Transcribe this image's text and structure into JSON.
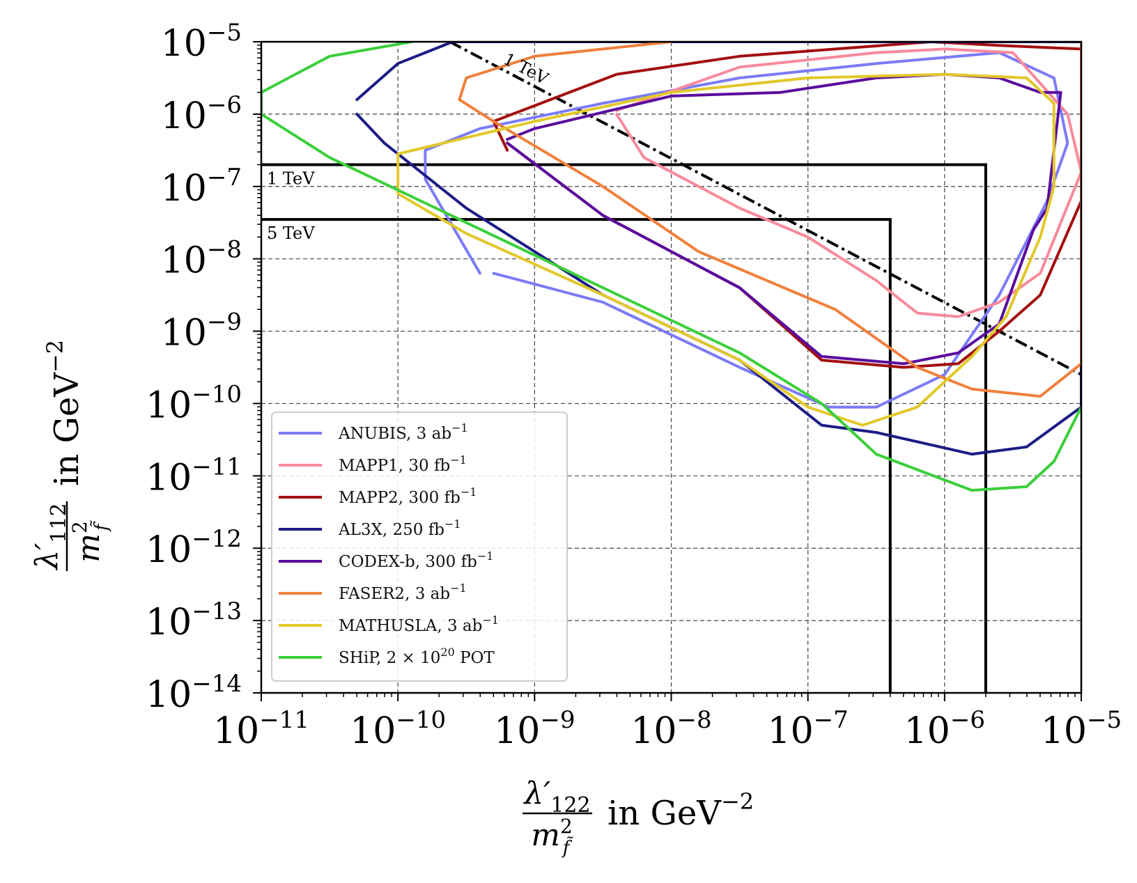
{
  "chart_data": {
    "type": "line",
    "scale": {
      "x": "log",
      "y": "log"
    },
    "xlim": [
      -11,
      -5
    ],
    "ylim": [
      -14,
      -5
    ],
    "x_tick_exponents": [
      -11,
      -10,
      -9,
      -8,
      -7,
      -6,
      -5
    ],
    "y_tick_exponents": [
      -14,
      -13,
      -12,
      -11,
      -10,
      -9,
      -8,
      -7,
      -6,
      -5
    ],
    "tick_base": "10",
    "xlabel": {
      "numerator": "λ′",
      "numerator_sub": "122",
      "denominator": "m",
      "denominator_sup": "2",
      "denominator_sub": "f̃",
      "unit": "in GeV",
      "unit_sup": "−2"
    },
    "ylabel": {
      "numerator": "λ′",
      "numerator_sub": "112",
      "denominator": "m",
      "denominator_sup": "2",
      "denominator_sub": "f̃",
      "unit": "in GeV",
      "unit_sup": "−2"
    },
    "grid": true,
    "legend_position": "lower-left",
    "series": [
      {
        "name": "ANUBIS,",
        "lumi": "3 ab",
        "lumi_sup": "−1",
        "color": "#7b7bf7",
        "points": [
          [
            -9.3,
            -8.2
          ],
          [
            -8.5,
            -8.6
          ],
          [
            -7.5,
            -9.5
          ],
          [
            -6.85,
            -10.05
          ],
          [
            -6.5,
            -10.05
          ],
          [
            -6.0,
            -9.6
          ],
          [
            -5.6,
            -8.5
          ],
          [
            -5.25,
            -7.2
          ],
          [
            -5.1,
            -6.4
          ],
          [
            -5.2,
            -5.5
          ],
          [
            -5.6,
            -5.15
          ],
          [
            -6.5,
            -5.3
          ],
          [
            -7.5,
            -5.5
          ],
          [
            -8.5,
            -5.85
          ],
          [
            -9.4,
            -6.2
          ],
          [
            -9.8,
            -6.5
          ],
          [
            -9.8,
            -6.9
          ],
          [
            -9.4,
            -8.2
          ]
        ]
      },
      {
        "name": "MAPP1,",
        "lumi": "30 fb",
        "lumi_sup": "−1",
        "color": "#f88a9b",
        "points": [
          [
            -8.4,
            -6.0
          ],
          [
            -8.2,
            -6.6
          ],
          [
            -7.5,
            -7.3
          ],
          [
            -7.0,
            -7.7
          ],
          [
            -6.5,
            -8.3
          ],
          [
            -6.2,
            -8.75
          ],
          [
            -5.9,
            -8.8
          ],
          [
            -5.6,
            -8.6
          ],
          [
            -5.3,
            -8.2
          ],
          [
            -5.0,
            -6.8
          ],
          [
            -5.1,
            -6.0
          ],
          [
            -5.5,
            -5.15
          ],
          [
            -6.0,
            -5.1
          ],
          [
            -6.5,
            -5.15
          ],
          [
            -7.5,
            -5.35
          ],
          [
            -8.4,
            -5.95
          ]
        ]
      },
      {
        "name": "MAPP2,",
        "lumi": "300 fb",
        "lumi_sup": "−1",
        "color": "#a30f0f",
        "points": [
          [
            -9.2,
            -6.4
          ],
          [
            -8.5,
            -7.4
          ],
          [
            -7.5,
            -8.4
          ],
          [
            -6.9,
            -9.4
          ],
          [
            -6.3,
            -9.5
          ],
          [
            -5.9,
            -9.45
          ],
          [
            -5.6,
            -9.0
          ],
          [
            -5.3,
            -8.5
          ],
          [
            -5.0,
            -7.2
          ],
          [
            -5.0,
            -5.1
          ],
          [
            -5.6,
            -5.05
          ],
          [
            -6.1,
            -5.0
          ],
          [
            -6.8,
            -5.1
          ],
          [
            -7.5,
            -5.2
          ],
          [
            -8.4,
            -5.45
          ],
          [
            -9.3,
            -6.1
          ],
          [
            -9.2,
            -6.5
          ]
        ]
      },
      {
        "name": "AL3X,",
        "lumi": "250 fb",
        "lumi_sup": "−1",
        "color": "#1c1c86",
        "points": [
          [
            -10.3,
            -6.0
          ],
          [
            -10.1,
            -6.4
          ],
          [
            -9.5,
            -7.3
          ],
          [
            -8.5,
            -8.5
          ],
          [
            -7.5,
            -9.4
          ],
          [
            -6.9,
            -10.3
          ],
          [
            -6.5,
            -10.4
          ],
          [
            -5.8,
            -10.7
          ],
          [
            -5.4,
            -10.6
          ],
          [
            -5.0,
            -10.05
          ],
          [
            -5.0,
            -5.0
          ],
          [
            -9.6,
            -5.0
          ],
          [
            -10.0,
            -5.3
          ],
          [
            -10.3,
            -5.8
          ]
        ]
      },
      {
        "name": "CODEX-b,",
        "lumi": "300 fb",
        "lumi_sup": "−1",
        "color": "#5a0c9e",
        "points": [
          [
            -9.2,
            -6.4
          ],
          [
            -8.5,
            -7.4
          ],
          [
            -7.5,
            -8.4
          ],
          [
            -6.9,
            -9.35
          ],
          [
            -6.3,
            -9.45
          ],
          [
            -5.9,
            -9.3
          ],
          [
            -5.6,
            -8.9
          ],
          [
            -5.35,
            -7.6
          ],
          [
            -5.25,
            -7.3
          ],
          [
            -5.15,
            -5.7
          ],
          [
            -5.3,
            -5.7
          ],
          [
            -5.6,
            -5.5
          ],
          [
            -6.0,
            -5.45
          ],
          [
            -6.5,
            -5.5
          ],
          [
            -7.2,
            -5.7
          ],
          [
            -8.0,
            -5.75
          ],
          [
            -9.0,
            -6.2
          ],
          [
            -9.2,
            -6.35
          ]
        ]
      },
      {
        "name": "FASER2,",
        "lumi": "3 ab",
        "lumi_sup": "−1",
        "color": "#f0803c",
        "points": [
          [
            -8.0,
            -5.0
          ],
          [
            -9.0,
            -5.2
          ],
          [
            -9.5,
            -5.5
          ],
          [
            -9.55,
            -5.8
          ],
          [
            -9.3,
            -6.1
          ],
          [
            -8.5,
            -7.0
          ],
          [
            -7.8,
            -7.9
          ],
          [
            -6.8,
            -8.7
          ],
          [
            -6.2,
            -9.5
          ],
          [
            -5.8,
            -9.8
          ],
          [
            -5.3,
            -9.9
          ],
          [
            -5.0,
            -9.45
          ],
          [
            -5.0,
            -5.0
          ]
        ]
      },
      {
        "name": "MATHUSLA,",
        "lumi": "3 ab",
        "lumi_sup": "−1",
        "color": "#e2c82a",
        "points": [
          [
            -10.0,
            -6.55
          ],
          [
            -10.0,
            -7.1
          ],
          [
            -9.5,
            -7.65
          ],
          [
            -8.5,
            -8.5
          ],
          [
            -7.5,
            -9.4
          ],
          [
            -7.0,
            -10.05
          ],
          [
            -6.6,
            -10.3
          ],
          [
            -6.2,
            -10.05
          ],
          [
            -5.8,
            -9.35
          ],
          [
            -5.55,
            -8.8
          ],
          [
            -5.3,
            -7.7
          ],
          [
            -5.2,
            -7.0
          ],
          [
            -5.2,
            -5.85
          ],
          [
            -5.4,
            -5.5
          ],
          [
            -6.0,
            -5.45
          ],
          [
            -7.0,
            -5.5
          ],
          [
            -8.0,
            -5.7
          ],
          [
            -9.0,
            -6.1
          ],
          [
            -10.0,
            -6.55
          ]
        ]
      },
      {
        "name": "SHiP,",
        "lumi": "2 × 10",
        "lumi_sup": "20",
        "lumi_suffix": " POT",
        "color": "#3bcf3b",
        "points": [
          [
            -9.9,
            -5.0
          ],
          [
            -10.5,
            -5.2
          ],
          [
            -10.8,
            -5.5
          ],
          [
            -11.0,
            -5.7
          ],
          [
            -11.0,
            -6.0
          ],
          [
            -10.5,
            -6.6
          ],
          [
            -9.5,
            -7.5
          ],
          [
            -8.5,
            -8.4
          ],
          [
            -7.5,
            -9.3
          ],
          [
            -6.9,
            -10.0
          ],
          [
            -6.5,
            -10.7
          ],
          [
            -5.8,
            -11.2
          ],
          [
            -5.4,
            -11.15
          ],
          [
            -5.2,
            -10.8
          ],
          [
            -5.0,
            -10.05
          ]
        ]
      }
    ],
    "reference_lines": [
      {
        "kind": "box",
        "label": "1 TeV",
        "x_max": 2e-06,
        "y_max": 2e-07
      },
      {
        "kind": "box",
        "label": "5 TeV",
        "x_max": 4e-07,
        "y_max": 3.5e-08
      },
      {
        "kind": "diagonal-dashdot",
        "label": "1 TeV",
        "points": [
          [
            -9.62,
            -5.0
          ],
          [
            -5.0,
            -9.6
          ]
        ]
      }
    ]
  }
}
